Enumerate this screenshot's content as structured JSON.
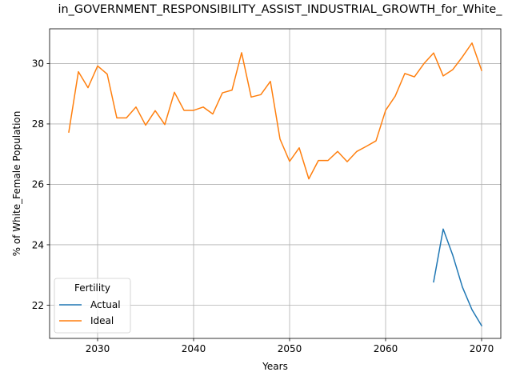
{
  "chart_data": {
    "type": "line",
    "title": "in_GOVERNMENT_RESPONSIBILITY_ASSIST_INDUSTRIAL_GROWTH_for_White_",
    "xlabel": "Years",
    "ylabel": "% of White_Female Population",
    "xlim": [
      2025,
      2072
    ],
    "ylim": [
      20.9,
      31.15
    ],
    "xticks": [
      2030,
      2040,
      2050,
      2060,
      2070
    ],
    "yticks": [
      22,
      24,
      26,
      28,
      30
    ],
    "grid": true,
    "legend": {
      "title": "Fertility",
      "placement": "lower-left"
    },
    "series": [
      {
        "name": "Actual",
        "color": "#1f77b4",
        "x": [
          2065,
          2066,
          2067,
          2068,
          2069,
          2070
        ],
        "y": [
          22.77,
          24.52,
          23.65,
          22.6,
          21.85,
          21.32
        ]
      },
      {
        "name": "Ideal",
        "color": "#ff7f0e",
        "x": [
          2027,
          2028,
          2029,
          2030,
          2031,
          2032,
          2033,
          2034,
          2035,
          2036,
          2037,
          2038,
          2039,
          2040,
          2041,
          2042,
          2043,
          2044,
          2045,
          2046,
          2047,
          2048,
          2049,
          2050,
          2051,
          2052,
          2053,
          2054,
          2055,
          2056,
          2057,
          2058,
          2059,
          2060,
          2061,
          2062,
          2063,
          2064,
          2065,
          2066,
          2067,
          2068,
          2069,
          2070
        ],
        "y": [
          27.73,
          29.73,
          29.2,
          29.92,
          29.65,
          28.2,
          28.2,
          28.56,
          27.96,
          28.44,
          27.98,
          29.05,
          28.45,
          28.45,
          28.56,
          28.33,
          29.03,
          29.12,
          30.36,
          28.89,
          28.97,
          29.41,
          27.5,
          26.76,
          27.21,
          26.18,
          26.79,
          26.79,
          27.09,
          26.75,
          27.09,
          27.26,
          27.44,
          28.45,
          28.92,
          29.67,
          29.56,
          30.0,
          30.35,
          29.59,
          29.8,
          30.22,
          30.68,
          29.77
        ]
      }
    ]
  }
}
